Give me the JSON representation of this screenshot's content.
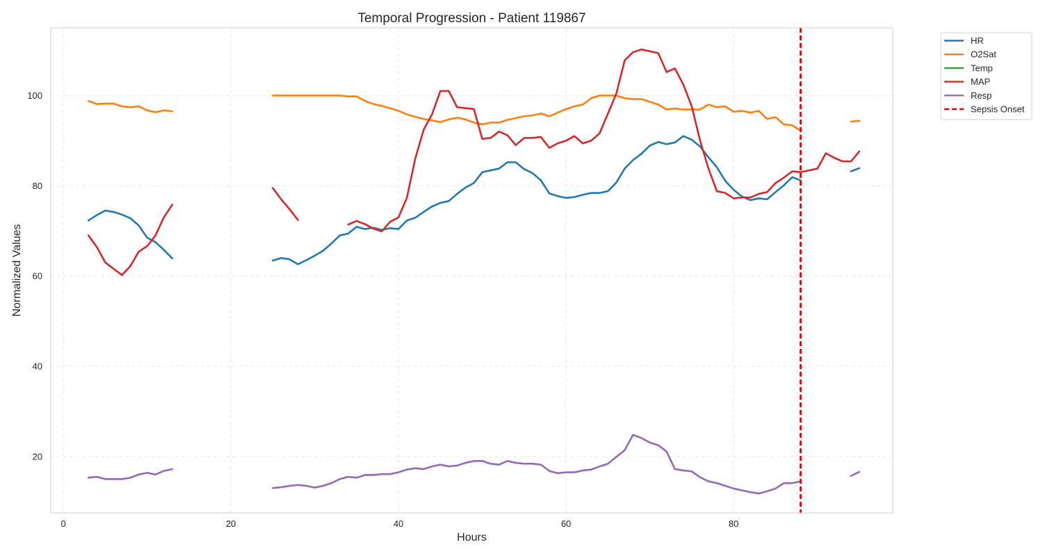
{
  "chart_data": {
    "type": "line",
    "title": "Temporal Progression - Patient 119867",
    "xlabel": "Hours",
    "ylabel": "Normalized Values",
    "xlim": [
      -1.5,
      99
    ],
    "ylim": [
      7.5,
      115
    ],
    "xticks": [
      0,
      20,
      40,
      60,
      80
    ],
    "yticks": [
      20,
      40,
      60,
      80,
      100
    ],
    "grid": true,
    "legend_position": "outside-top-right",
    "series": [
      {
        "name": "HR",
        "color": "#1f77b4",
        "points": [
          [
            3,
            72.3
          ],
          [
            4,
            73.5
          ],
          [
            5,
            74.5
          ],
          [
            6,
            74.2
          ],
          [
            7,
            73.6
          ],
          [
            8,
            72.8
          ],
          [
            9,
            71.2
          ],
          [
            10,
            68.5
          ],
          [
            11,
            67.5
          ],
          [
            12,
            65.8
          ],
          [
            13,
            63.9
          ],
          [
            25,
            63.4
          ],
          [
            26,
            64.0
          ],
          [
            27,
            63.7
          ],
          [
            28,
            62.6
          ],
          [
            29,
            63.5
          ],
          [
            30,
            64.5
          ],
          [
            31,
            65.6
          ],
          [
            32,
            67.2
          ],
          [
            33,
            69.0
          ],
          [
            34,
            69.4
          ],
          [
            35,
            70.9
          ],
          [
            36,
            70.4
          ],
          [
            37,
            70.7
          ],
          [
            38,
            70.2
          ],
          [
            39,
            70.6
          ],
          [
            40,
            70.4
          ],
          [
            41,
            72.3
          ],
          [
            42,
            72.9
          ],
          [
            43,
            74.2
          ],
          [
            44,
            75.4
          ],
          [
            45,
            76.2
          ],
          [
            46,
            76.6
          ],
          [
            47,
            78.2
          ],
          [
            48,
            79.6
          ],
          [
            49,
            80.6
          ],
          [
            50,
            83.0
          ],
          [
            51,
            83.4
          ],
          [
            52,
            83.8
          ],
          [
            53,
            85.2
          ],
          [
            54,
            85.2
          ],
          [
            55,
            83.7
          ],
          [
            56,
            82.8
          ],
          [
            57,
            81.2
          ],
          [
            58,
            78.3
          ],
          [
            59,
            77.7
          ],
          [
            60,
            77.3
          ],
          [
            61,
            77.5
          ],
          [
            62,
            78.0
          ],
          [
            63,
            78.4
          ],
          [
            64,
            78.4
          ],
          [
            65,
            78.8
          ],
          [
            66,
            80.7
          ],
          [
            67,
            83.8
          ],
          [
            68,
            85.7
          ],
          [
            69,
            87.1
          ],
          [
            70,
            88.9
          ],
          [
            71,
            89.7
          ],
          [
            72,
            89.2
          ],
          [
            73,
            89.6
          ],
          [
            74,
            91.0
          ],
          [
            75,
            90.2
          ],
          [
            76,
            88.7
          ],
          [
            77,
            86.3
          ],
          [
            78,
            84.1
          ],
          [
            79,
            81.1
          ],
          [
            80,
            79.1
          ],
          [
            81,
            77.6
          ],
          [
            82,
            76.8
          ],
          [
            83,
            77.2
          ],
          [
            84,
            77.0
          ],
          [
            85,
            78.6
          ],
          [
            86,
            80.1
          ],
          [
            87,
            81.9
          ],
          [
            88,
            81.2
          ],
          [
            94,
            83.2
          ],
          [
            95,
            83.9
          ]
        ]
      },
      {
        "name": "O2Sat",
        "color": "#ff7f0e",
        "points": [
          [
            3,
            98.8
          ],
          [
            4,
            98.1
          ],
          [
            5,
            98.2
          ],
          [
            6,
            98.2
          ],
          [
            7,
            97.6
          ],
          [
            8,
            97.4
          ],
          [
            9,
            97.6
          ],
          [
            10,
            96.7
          ],
          [
            11,
            96.3
          ],
          [
            12,
            96.7
          ],
          [
            13,
            96.5
          ],
          [
            25,
            100.0
          ],
          [
            26,
            100.0
          ],
          [
            27,
            100.0
          ],
          [
            28,
            100.0
          ],
          [
            29,
            100.0
          ],
          [
            30,
            100.0
          ],
          [
            31,
            100.0
          ],
          [
            32,
            100.0
          ],
          [
            33,
            100.0
          ],
          [
            34,
            99.8
          ],
          [
            35,
            99.8
          ],
          [
            36,
            98.8
          ],
          [
            37,
            98.1
          ],
          [
            38,
            97.7
          ],
          [
            39,
            97.2
          ],
          [
            40,
            96.6
          ],
          [
            41,
            95.8
          ],
          [
            42,
            95.3
          ],
          [
            43,
            94.8
          ],
          [
            44,
            94.5
          ],
          [
            45,
            94.1
          ],
          [
            46,
            94.7
          ],
          [
            47,
            95.1
          ],
          [
            48,
            94.7
          ],
          [
            49,
            94.0
          ],
          [
            50,
            93.6
          ],
          [
            51,
            94.0
          ],
          [
            52,
            94.0
          ],
          [
            53,
            94.6
          ],
          [
            54,
            95.0
          ],
          [
            55,
            95.4
          ],
          [
            56,
            95.6
          ],
          [
            57,
            96.0
          ],
          [
            58,
            95.4
          ],
          [
            59,
            96.2
          ],
          [
            60,
            97.0
          ],
          [
            61,
            97.6
          ],
          [
            62,
            98.0
          ],
          [
            63,
            99.4
          ],
          [
            64,
            100.0
          ],
          [
            65,
            100.0
          ],
          [
            66,
            100.0
          ],
          [
            67,
            99.4
          ],
          [
            68,
            99.2
          ],
          [
            69,
            99.2
          ],
          [
            70,
            98.6
          ],
          [
            71,
            98.0
          ],
          [
            72,
            96.9
          ],
          [
            73,
            97.1
          ],
          [
            74,
            96.9
          ],
          [
            75,
            96.9
          ],
          [
            76,
            96.9
          ],
          [
            77,
            98.0
          ],
          [
            78,
            97.4
          ],
          [
            79,
            97.6
          ],
          [
            80,
            96.4
          ],
          [
            81,
            96.6
          ],
          [
            82,
            96.2
          ],
          [
            83,
            96.6
          ],
          [
            84,
            94.8
          ],
          [
            85,
            95.2
          ],
          [
            86,
            93.6
          ],
          [
            87,
            93.4
          ],
          [
            88,
            92.2
          ],
          [
            94,
            94.2
          ],
          [
            95,
            94.4
          ]
        ]
      },
      {
        "name": "Temp",
        "color": "#2ca02c",
        "points": []
      },
      {
        "name": "MAP",
        "color": "#d62728",
        "points": [
          [
            3,
            69.0
          ],
          [
            4,
            66.4
          ],
          [
            5,
            63.0
          ],
          [
            6,
            61.6
          ],
          [
            7,
            60.2
          ],
          [
            8,
            62.2
          ],
          [
            9,
            65.4
          ],
          [
            10,
            66.6
          ],
          [
            11,
            69.0
          ],
          [
            12,
            73.0
          ],
          [
            13,
            75.8
          ],
          [
            25,
            79.5
          ],
          [
            26,
            77.0
          ],
          [
            27,
            74.8
          ],
          [
            28,
            72.4
          ],
          [
            34,
            71.4
          ],
          [
            35,
            72.2
          ],
          [
            36,
            71.5
          ],
          [
            37,
            70.5
          ],
          [
            38,
            69.9
          ],
          [
            39,
            72.0
          ],
          [
            40,
            73.0
          ],
          [
            41,
            77.3
          ],
          [
            42,
            86.0
          ],
          [
            43,
            92.4
          ],
          [
            44,
            95.8
          ],
          [
            45,
            101.0
          ],
          [
            46,
            101.0
          ],
          [
            47,
            97.4
          ],
          [
            48,
            97.2
          ],
          [
            49,
            97.0
          ],
          [
            50,
            90.4
          ],
          [
            51,
            90.6
          ],
          [
            52,
            92.0
          ],
          [
            53,
            91.2
          ],
          [
            54,
            89.0
          ],
          [
            55,
            90.6
          ],
          [
            56,
            90.6
          ],
          [
            57,
            90.8
          ],
          [
            58,
            88.4
          ],
          [
            59,
            89.4
          ],
          [
            60,
            90.0
          ],
          [
            61,
            91.0
          ],
          [
            62,
            89.4
          ],
          [
            63,
            90.0
          ],
          [
            64,
            91.6
          ],
          [
            65,
            96.0
          ],
          [
            66,
            100.4
          ],
          [
            67,
            107.8
          ],
          [
            68,
            109.6
          ],
          [
            69,
            110.2
          ],
          [
            70,
            109.8
          ],
          [
            71,
            109.4
          ],
          [
            72,
            105.2
          ],
          [
            73,
            106.0
          ],
          [
            74,
            102.4
          ],
          [
            75,
            97.6
          ],
          [
            76,
            90.0
          ],
          [
            77,
            83.8
          ],
          [
            78,
            78.8
          ],
          [
            79,
            78.4
          ],
          [
            80,
            77.2
          ],
          [
            81,
            77.4
          ],
          [
            82,
            77.4
          ],
          [
            83,
            78.2
          ],
          [
            84,
            78.6
          ],
          [
            85,
            80.6
          ],
          [
            86,
            81.8
          ],
          [
            87,
            83.2
          ],
          [
            88,
            83.0
          ],
          [
            89,
            83.4
          ],
          [
            90,
            83.8
          ],
          [
            91,
            87.2
          ],
          [
            92,
            86.2
          ],
          [
            93,
            85.4
          ],
          [
            94,
            85.4
          ],
          [
            95,
            87.6
          ]
        ]
      },
      {
        "name": "Resp",
        "color": "#9467bd",
        "points": [
          [
            3,
            15.3
          ],
          [
            4,
            15.5
          ],
          [
            5,
            15.0
          ],
          [
            6,
            15.0
          ],
          [
            7,
            15.0
          ],
          [
            8,
            15.3
          ],
          [
            9,
            16.0
          ],
          [
            10,
            16.4
          ],
          [
            11,
            16.0
          ],
          [
            12,
            16.8
          ],
          [
            13,
            17.2
          ],
          [
            25,
            13.0
          ],
          [
            26,
            13.2
          ],
          [
            27,
            13.5
          ],
          [
            28,
            13.7
          ],
          [
            29,
            13.5
          ],
          [
            30,
            13.1
          ],
          [
            31,
            13.5
          ],
          [
            32,
            14.1
          ],
          [
            33,
            15.0
          ],
          [
            34,
            15.5
          ],
          [
            35,
            15.3
          ],
          [
            36,
            15.9
          ],
          [
            37,
            15.9
          ],
          [
            38,
            16.1
          ],
          [
            39,
            16.1
          ],
          [
            40,
            16.5
          ],
          [
            41,
            17.1
          ],
          [
            42,
            17.4
          ],
          [
            43,
            17.2
          ],
          [
            44,
            17.8
          ],
          [
            45,
            18.2
          ],
          [
            46,
            17.8
          ],
          [
            47,
            18.0
          ],
          [
            48,
            18.6
          ],
          [
            49,
            19.0
          ],
          [
            50,
            19.0
          ],
          [
            51,
            18.4
          ],
          [
            52,
            18.2
          ],
          [
            53,
            19.0
          ],
          [
            54,
            18.6
          ],
          [
            55,
            18.4
          ],
          [
            56,
            18.4
          ],
          [
            57,
            18.2
          ],
          [
            58,
            16.8
          ],
          [
            59,
            16.3
          ],
          [
            60,
            16.5
          ],
          [
            61,
            16.5
          ],
          [
            62,
            16.9
          ],
          [
            63,
            17.1
          ],
          [
            64,
            17.8
          ],
          [
            65,
            18.4
          ],
          [
            66,
            19.9
          ],
          [
            67,
            21.4
          ],
          [
            68,
            24.8
          ],
          [
            69,
            24.1
          ],
          [
            70,
            23.1
          ],
          [
            71,
            22.5
          ],
          [
            72,
            21.1
          ],
          [
            73,
            17.2
          ],
          [
            74,
            16.9
          ],
          [
            75,
            16.7
          ],
          [
            76,
            15.4
          ],
          [
            77,
            14.5
          ],
          [
            78,
            14.1
          ],
          [
            79,
            13.5
          ],
          [
            80,
            12.9
          ],
          [
            81,
            12.5
          ],
          [
            82,
            12.1
          ],
          [
            83,
            11.8
          ],
          [
            84,
            12.3
          ],
          [
            85,
            12.9
          ],
          [
            86,
            14.1
          ],
          [
            87,
            14.1
          ],
          [
            88,
            14.5
          ],
          [
            94,
            15.7
          ],
          [
            95,
            16.6
          ]
        ]
      }
    ],
    "markers": [
      {
        "name": "Sepsis Onset",
        "x": 88,
        "color": "#e50000",
        "style": "dashed"
      }
    ]
  }
}
